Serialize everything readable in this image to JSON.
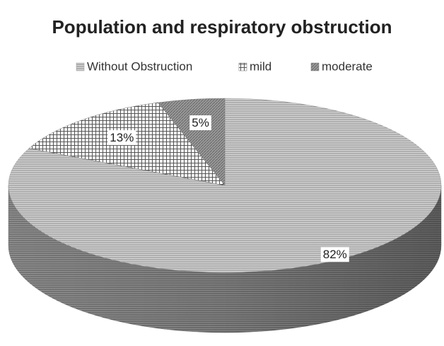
{
  "chart_data": {
    "type": "pie3d",
    "title": "Population and respiratory obstruction",
    "categories": [
      "Without Obstruction",
      "mild",
      "moderate"
    ],
    "values": [
      82,
      13,
      5
    ],
    "value_labels": [
      "82%",
      "13%",
      "5%"
    ],
    "colors": [
      "#9a9a9a",
      "#6e6e6e",
      "#7a7a7a"
    ],
    "legend": "top"
  }
}
